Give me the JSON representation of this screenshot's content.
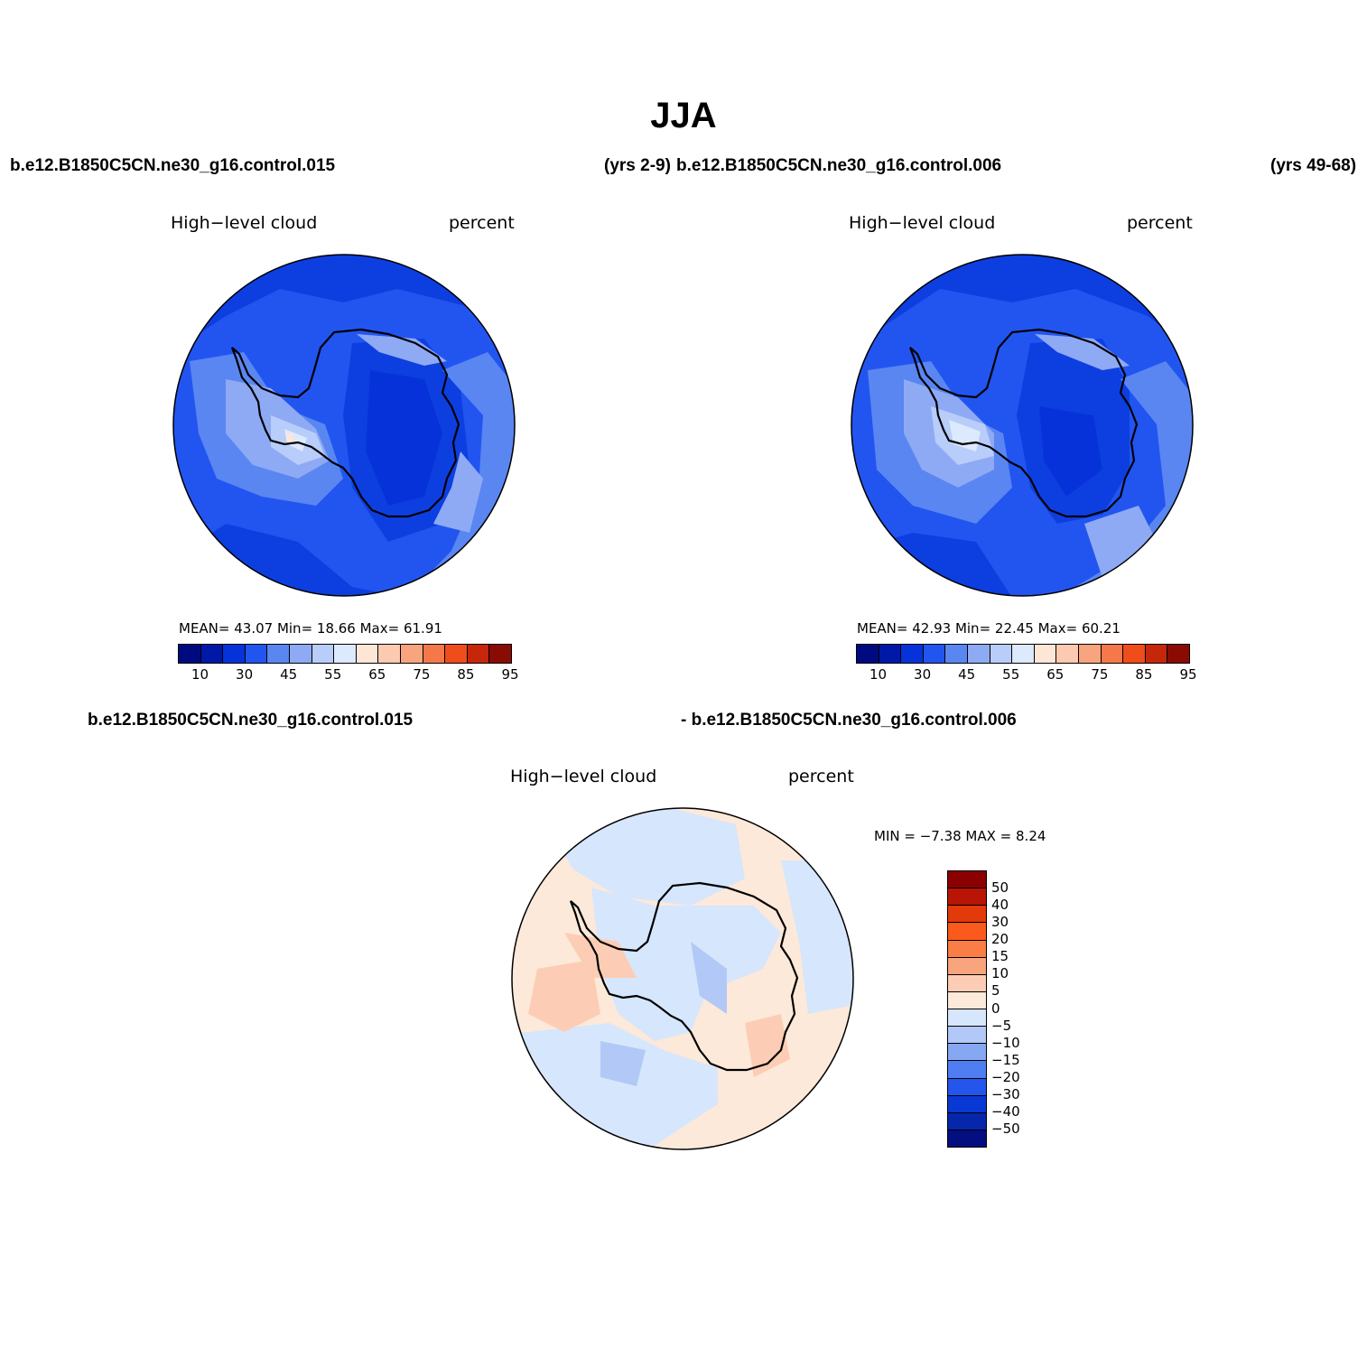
{
  "title": "JJA",
  "case_labels": {
    "p1_left": "b.e12.B1850C5CN.ne30_g16.control.015",
    "p1_right": "(yrs 2-9)",
    "p2_left": "b.e12.B1850C5CN.ne30_g16.control.006",
    "p2_right": "(yrs 49-68)",
    "p3_left": "b.e12.B1850C5CN.ne30_g16.control.015",
    "p3_right": "- b.e12.B1850C5CN.ne30_g16.control.006"
  },
  "panels": [
    {
      "variable": "High−level cloud",
      "units": "percent",
      "stats": "MEAN=   43.07   Min=   18.66   Max=   61.91",
      "mean": 43.07,
      "min": 18.66,
      "max": 61.91
    },
    {
      "variable": "High−level cloud",
      "units": "percent",
      "stats": "MEAN=   42.93   Min=   22.45   Max=   60.21",
      "mean": 42.93,
      "min": 22.45,
      "max": 60.21
    },
    {
      "variable": "High−level cloud",
      "units": "percent",
      "stats": "MIN =   −7.38  MAX =     8.24",
      "min": -7.38,
      "max": 8.24
    }
  ],
  "colorbar_abs": {
    "tick_labels": [
      "10",
      "30",
      "45",
      "55",
      "65",
      "75",
      "85",
      "95"
    ],
    "colors": [
      "#000a80",
      "#0018a8",
      "#0533d9",
      "#2255f0",
      "#5a86f2",
      "#8eaaf4",
      "#b9cdfa",
      "#dde9fd",
      "#fde6d6",
      "#fbcab0",
      "#f8a47f",
      "#f5784a",
      "#ef4d19",
      "#c6270a",
      "#8a0a04"
    ]
  },
  "colorbar_diff": {
    "labels": [
      "50",
      "40",
      "30",
      "20",
      "15",
      "10",
      "5",
      "0",
      "−5",
      "−10",
      "−15",
      "−20",
      "−30",
      "−40",
      "−50"
    ],
    "colors": [
      "#8b0000",
      "#b81504",
      "#e23a0a",
      "#fa5a1c",
      "#f97d45",
      "#f8a57d",
      "#fccdb4",
      "#fde9d9",
      "#d6e6fc",
      "#b2c9f7",
      "#86a7f1",
      "#4f7ef2",
      "#2456ee",
      "#0839d4",
      "#0626ac",
      "#030f80"
    ]
  }
}
